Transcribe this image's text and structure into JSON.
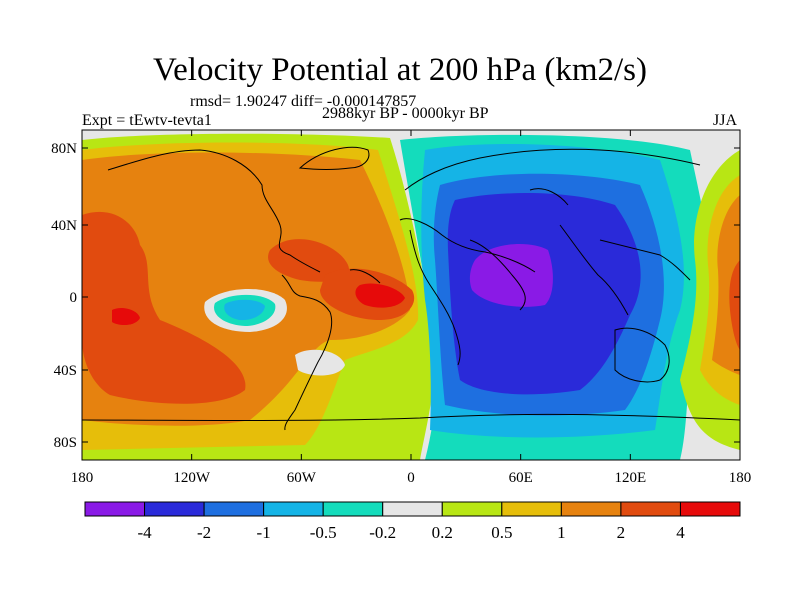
{
  "title": "Velocity Potential at 200 hPa (km2/s)",
  "stats_text": "rmsd= 1.90247 diff= -0.000147857",
  "expt_text": "Expt = tEwtv-tevta1",
  "period_text": "2988kyr BP - 0000kyr BP",
  "season_text": "JJA",
  "axes": {
    "lon_ticks": [
      "180",
      "120W",
      "60W",
      "0",
      "60E",
      "120E",
      "180"
    ],
    "lat_ticks": [
      "80N",
      "40N",
      "0",
      "40S",
      "80S"
    ]
  },
  "colorbar": {
    "colors": [
      "#8a1ae6",
      "#2a2ad9",
      "#1e6fe0",
      "#15b4e6",
      "#14dcbc",
      "#e6e6e6",
      "#b8e614",
      "#e6be0a",
      "#e6820f",
      "#e14b0f",
      "#e60a0a"
    ],
    "labels": [
      "-4",
      "-2",
      "-1",
      "-0.5",
      "-0.2",
      "0.2",
      "0.5",
      "1",
      "2",
      "4"
    ]
  }
}
